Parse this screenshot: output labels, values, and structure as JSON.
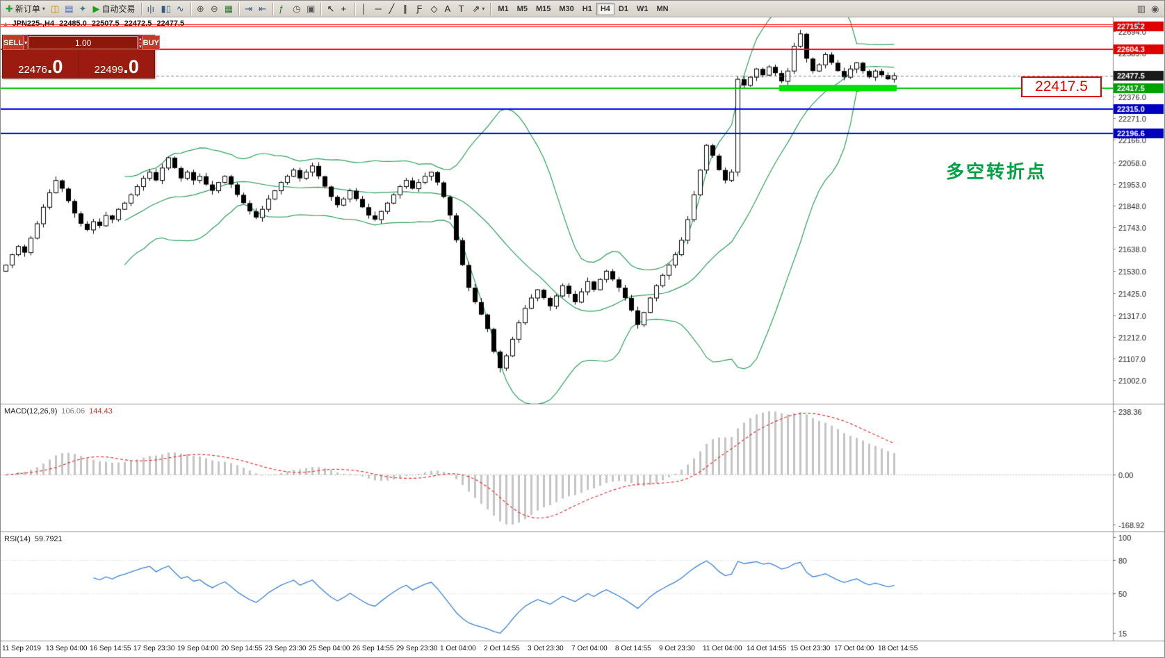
{
  "glyphs": {
    "caret": "▾",
    "up": "▴",
    "down": "▾",
    "collapse": "▴",
    "axis_scroll": "▲"
  },
  "toolbar": {
    "groups": [
      {
        "items": [
          {
            "name": "new-order-button",
            "glyph": "✚",
            "glyph_color": "#2e9e2e",
            "label": "新订单",
            "caret": true
          },
          {
            "name": "chart-window-button",
            "glyph": "◫",
            "glyph_color": "#c8860b"
          },
          {
            "name": "data-window-button",
            "glyph": "▤",
            "glyph_color": "#4169aa"
          },
          {
            "name": "navigator-button",
            "glyph": "✦",
            "glyph_color": "#3a7a9a"
          },
          {
            "name": "autotrading-button",
            "glyph": "▶",
            "glyph_color": "#18a018",
            "label": "自动交易"
          }
        ]
      },
      {
        "items": [
          {
            "name": "bars-chart-button",
            "glyph": "ı|ı",
            "glyph_color": "#335a8a"
          },
          {
            "name": "candles-chart-button",
            "glyph": "▮▯",
            "glyph_color": "#335a8a"
          },
          {
            "name": "line-chart-button",
            "glyph": "∿",
            "glyph_color": "#335a8a"
          }
        ]
      },
      {
        "items": [
          {
            "name": "zoom-in-button",
            "glyph": "⊕",
            "glyph_color": "#555"
          },
          {
            "name": "zoom-out-button",
            "glyph": "⊖",
            "glyph_color": "#555"
          },
          {
            "name": "tile-windows-button",
            "glyph": "▦",
            "glyph_color": "#2e7d32"
          }
        ]
      },
      {
        "items": [
          {
            "name": "auto-scroll-button",
            "glyph": "⇥",
            "glyph_color": "#335a8a"
          },
          {
            "name": "chart-shift-button",
            "glyph": "⇤",
            "glyph_color": "#335a8a"
          }
        ]
      },
      {
        "items": [
          {
            "name": "indicators-button",
            "glyph": "ƒ",
            "glyph_color": "#2e7d32"
          },
          {
            "name": "periods-button",
            "glyph": "◷",
            "glyph_color": "#555"
          },
          {
            "name": "templates-button",
            "glyph": "▣",
            "glyph_color": "#555"
          }
        ]
      },
      {
        "items": [
          {
            "name": "cursor-button",
            "glyph": "↖",
            "glyph_color": "#222"
          },
          {
            "name": "crosshair-button",
            "glyph": "+",
            "glyph_color": "#222"
          }
        ]
      },
      {
        "items": [
          {
            "name": "vertical-line-button",
            "glyph": "│",
            "glyph_color": "#222"
          },
          {
            "name": "horizontal-line-button",
            "glyph": "─",
            "glyph_color": "#222"
          },
          {
            "name": "trendline-button",
            "glyph": "╱",
            "glyph_color": "#222"
          },
          {
            "name": "channel-button",
            "glyph": "∥",
            "glyph_color": "#222"
          },
          {
            "name": "fibonacci-button",
            "glyph": "Ƒ",
            "glyph_color": "#222"
          },
          {
            "name": "shapes-button",
            "glyph": "◇",
            "glyph_color": "#222"
          },
          {
            "name": "text-button",
            "glyph": "A",
            "glyph_color": "#222"
          },
          {
            "name": "text-label-button",
            "glyph": "T",
            "glyph_color": "#222"
          },
          {
            "name": "arrows-button",
            "glyph": "⇗",
            "glyph_color": "#222",
            "caret": true
          }
        ]
      }
    ],
    "timeframes": {
      "items": [
        "M1",
        "M5",
        "M15",
        "M30",
        "H1",
        "H4",
        "D1",
        "W1",
        "MN"
      ],
      "active": "H4"
    },
    "right_items": [
      {
        "name": "print-icon",
        "glyph": "▥",
        "glyph_color": "#555"
      },
      {
        "name": "camera-icon",
        "glyph": "◉",
        "glyph_color": "#555"
      }
    ]
  },
  "chart_header": {
    "symbol_period": "JPN225-,H4",
    "open": "22485.0",
    "high": "22507.5",
    "low": "22472.5",
    "close": "22477.5"
  },
  "trade_panel": {
    "sell_label": "SELL",
    "buy_label": "BUY",
    "lot_value": "1.00",
    "sell_price_main": "22476",
    "sell_price_big": ".0",
    "buy_price_main": "22499",
    "buy_price_big": ".0"
  },
  "annotations": {
    "price_callout": "22417.5",
    "turning_point": "多空转折点"
  },
  "chart_data": {
    "type": "candlestick",
    "symbol": "JPN225-",
    "period": "H4",
    "ohlc_current": {
      "open": 22485.0,
      "high": 22507.5,
      "low": 22472.5,
      "close": 22477.5
    },
    "price_range": [
      20888,
      22760
    ],
    "closes": [
      21560,
      21610,
      21650,
      21620,
      21690,
      21760,
      21840,
      21910,
      21970,
      21930,
      21870,
      21810,
      21760,
      21730,
      21770,
      21750,
      21800,
      21780,
      21830,
      21860,
      21900,
      21940,
      21980,
      22010,
      21970,
      22030,
      22080,
      22030,
      21980,
      22010,
      21970,
      21990,
      21950,
      21920,
      21960,
      21990,
      21950,
      21900,
      21860,
      21820,
      21790,
      21830,
      21880,
      21920,
      21960,
      21990,
      22020,
      21980,
      22010,
      22040,
      21990,
      21940,
      21890,
      21850,
      21880,
      21920,
      21880,
      21840,
      21800,
      21780,
      21820,
      21860,
      21900,
      21940,
      21970,
      21930,
      21960,
      21990,
      22010,
      21960,
      21890,
      21800,
      21680,
      21560,
      21450,
      21380,
      21320,
      21250,
      21140,
      21060,
      21120,
      21200,
      21280,
      21350,
      21400,
      21440,
      21400,
      21360,
      21410,
      21460,
      21420,
      21380,
      21430,
      21480,
      21440,
      21490,
      21530,
      21490,
      21450,
      21400,
      21340,
      21270,
      21330,
      21400,
      21460,
      21510,
      21560,
      21610,
      21680,
      21780,
      21900,
      22020,
      22140,
      22090,
      22020,
      21970,
      22010,
      22460,
      22430,
      22470,
      22510,
      22480,
      22520,
      22490,
      22450,
      22500,
      22620,
      22680,
      22560,
      22500,
      22530,
      22580,
      22540,
      22500,
      22470,
      22510,
      22540,
      22500,
      22470,
      22500,
      22480,
      22460,
      22477.5
    ],
    "y_ticks": [
      "22694.0",
      "22589.0",
      "22484.0",
      "22376.0",
      "22271.0",
      "22166.0",
      "22058.0",
      "21953.0",
      "21848.0",
      "21743.0",
      "21638.0",
      "21530.0",
      "21425.0",
      "21317.0",
      "21212.0",
      "21107.0",
      "21002.0"
    ],
    "levels": [
      {
        "price": 22728.0,
        "color": "#ff0000",
        "width": 1,
        "label": null,
        "box": null
      },
      {
        "price": 22715.2,
        "color": "#ff0000",
        "width": 1,
        "label": "22715.2",
        "box": "#e00000"
      },
      {
        "price": 22604.3,
        "color": "#ff0000",
        "width": 2,
        "label": "22604.3",
        "box": "#e00000"
      },
      {
        "price": 22417.5,
        "color": "#00c000",
        "width": 2,
        "label": "22417.5",
        "box": "#00a000"
      },
      {
        "price": 22315.0,
        "color": "#0000ff",
        "width": 2,
        "label": "22315.0",
        "box": "#0000c0"
      },
      {
        "price": 22196.6,
        "color": "#0000ff",
        "width": 2,
        "label": "22196.6",
        "box": "#0000c0"
      }
    ],
    "current_price": {
      "value": 22477.5,
      "label": "22477.5",
      "box_color": "#1a1a1a"
    },
    "highlight": {
      "start_bar": 124,
      "end_bar": 142,
      "price": 22417.5,
      "color": "#00e000",
      "thickness": 9
    },
    "bollinger": {
      "period": 20,
      "deviation": 2,
      "color": "#2e9e5b"
    },
    "macd": {
      "label": "MACD(12,26,9)",
      "value_main": "106.06",
      "value_signal": "144.43",
      "ticks": [
        "238.36",
        "0.00",
        "-168.92"
      ],
      "hist_color": "#c4c4c4",
      "signal_color": "#e03232"
    },
    "rsi": {
      "label": "RSI(14)",
      "value_text": "59.7921",
      "ticks": [
        100,
        80,
        50,
        15
      ],
      "range": [
        12,
        102
      ],
      "line_color": "#3b82d0"
    },
    "x_labels": [
      "11 Sep 2019",
      "13 Sep 04:00",
      "16 Sep 14:55",
      "17 Sep 23:30",
      "19 Sep 04:00",
      "20 Sep 14:55",
      "23 Sep 23:30",
      "25 Sep 04:00",
      "26 Sep 14:55",
      "29 Sep 23:30",
      "1 Oct 04:00",
      "2 Oct 14:55",
      "3 Oct 23:30",
      "7 Oct 04:00",
      "8 Oct 14:55",
      "9 Oct 23:30",
      "11 Oct 04:00",
      "14 Oct 14:55",
      "15 Oct 23:30",
      "17 Oct 04:00",
      "18 Oct 14:55"
    ]
  }
}
